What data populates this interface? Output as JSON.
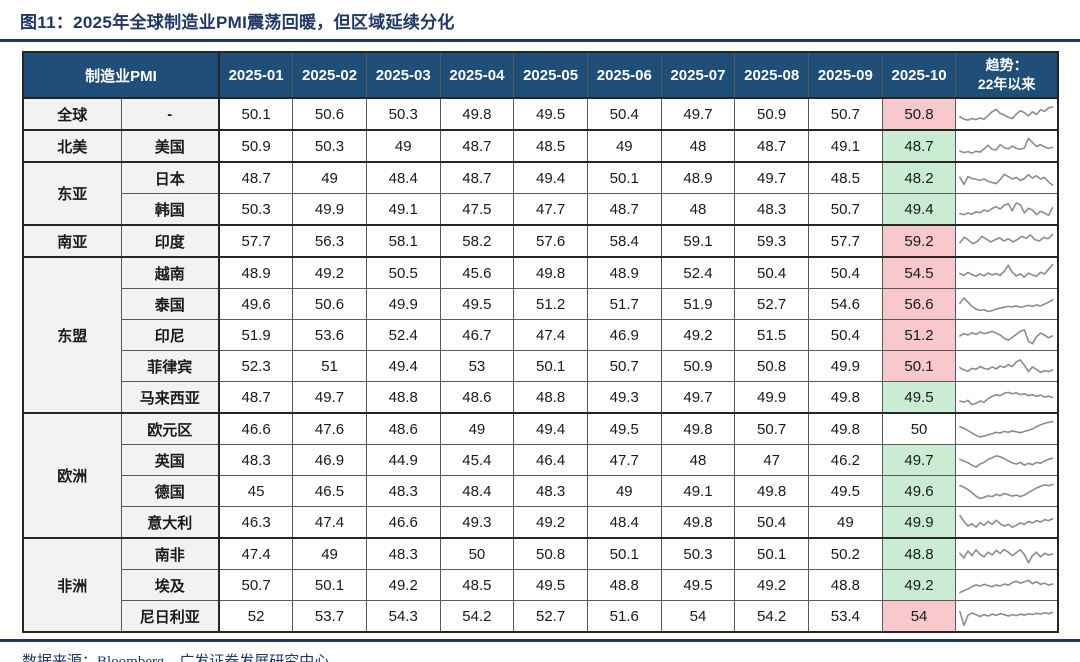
{
  "title": "图11：2025年全球制造业PMI震荡回暖，但区域延续分化",
  "source_note": "数据来源：Bloomberg，广发证券发展研究中心",
  "colors": {
    "header_bg": "#1F4E79",
    "title_navy": "#1F3864",
    "up_bg": "#F8C8CC",
    "up_text": "#C00000",
    "down_bg": "#C9ECD2",
    "down_text": "#1E7E34",
    "label_bg": "#F2F2F2",
    "sparkline": "#8C8C8C"
  },
  "chart_data": {
    "type": "table",
    "corner_label": "制造业PMI",
    "trend_header_line1": "趋势：",
    "trend_header_line2": "22年以来",
    "months": [
      "2025-01",
      "2025-02",
      "2025-03",
      "2025-04",
      "2025-05",
      "2025-06",
      "2025-07",
      "2025-08",
      "2025-09",
      "2025-10"
    ],
    "latest_style_legend": {
      "up": "red highlight",
      "down": "green highlight",
      "neutral": "no highlight"
    },
    "rows": [
      {
        "region": "全球",
        "region_span": 1,
        "group_start": true,
        "country": "-",
        "values": [
          50.1,
          50.6,
          50.3,
          49.8,
          49.5,
          50.4,
          49.7,
          50.9,
          50.7,
          50.8
        ],
        "latest_style": "up",
        "sparkline": [
          0.4,
          0.3,
          0.26,
          0.33,
          0.28,
          0.35,
          0.3,
          0.45,
          0.62,
          0.72,
          0.55,
          0.48,
          0.38,
          0.33,
          0.52,
          0.66,
          0.58,
          0.44,
          0.62,
          0.5,
          0.7,
          0.64,
          0.78,
          0.82
        ]
      },
      {
        "region": "北美",
        "region_span": 1,
        "group_start": true,
        "country": "美国",
        "values": [
          50.9,
          50.3,
          49,
          48.7,
          48.5,
          49,
          48,
          48.7,
          49.1,
          48.7
        ],
        "latest_style": "down",
        "sparkline": [
          0.3,
          0.24,
          0.28,
          0.22,
          0.3,
          0.26,
          0.4,
          0.55,
          0.38,
          0.35,
          0.58,
          0.45,
          0.4,
          0.52,
          0.42,
          0.38,
          0.44,
          0.85,
          0.68,
          0.5,
          0.58,
          0.48,
          0.42,
          0.46
        ]
      },
      {
        "region": "东亚",
        "region_span": 2,
        "group_start": true,
        "country": "日本",
        "values": [
          48.7,
          49,
          48.4,
          48.7,
          49.4,
          50.1,
          48.9,
          49.7,
          48.5,
          48.2
        ],
        "latest_style": "down",
        "sparkline": [
          0.55,
          0.25,
          0.58,
          0.5,
          0.46,
          0.42,
          0.48,
          0.38,
          0.33,
          0.28,
          0.45,
          0.68,
          0.58,
          0.48,
          0.55,
          0.42,
          0.5,
          0.66,
          0.52,
          0.62,
          0.48,
          0.55,
          0.35,
          0.22
        ]
      },
      {
        "country": "韩国",
        "values": [
          50.3,
          49.9,
          49.1,
          47.5,
          47.7,
          48.7,
          48,
          48.3,
          50.7,
          49.4
        ],
        "latest_style": "down",
        "sparkline": [
          0.32,
          0.28,
          0.35,
          0.3,
          0.4,
          0.36,
          0.48,
          0.42,
          0.55,
          0.62,
          0.52,
          0.68,
          0.75,
          0.45,
          0.78,
          0.7,
          0.35,
          0.55,
          0.48,
          0.28,
          0.42,
          0.35,
          0.25,
          0.58
        ]
      },
      {
        "region": "南亚",
        "region_span": 1,
        "group_start": true,
        "country": "印度",
        "values": [
          57.7,
          56.3,
          58.1,
          58.2,
          57.6,
          58.4,
          59.1,
          59.3,
          57.7,
          59.2
        ],
        "latest_style": "up",
        "sparkline": [
          0.45,
          0.68,
          0.55,
          0.4,
          0.52,
          0.72,
          0.6,
          0.48,
          0.58,
          0.66,
          0.52,
          0.62,
          0.48,
          0.58,
          0.72,
          0.64,
          0.78,
          0.58,
          0.52,
          0.68,
          0.62,
          0.8
        ]
      },
      {
        "region": "东盟",
        "region_span": 5,
        "group_start": true,
        "country": "越南",
        "values": [
          48.9,
          49.2,
          50.5,
          45.6,
          49.8,
          48.9,
          52.4,
          50.4,
          50.4,
          54.5
        ],
        "latest_style": "up",
        "sparkline": [
          0.5,
          0.42,
          0.55,
          0.45,
          0.38,
          0.48,
          0.4,
          0.52,
          0.44,
          0.5,
          0.42,
          0.6,
          0.85,
          0.55,
          0.4,
          0.48,
          0.35,
          0.52,
          0.44,
          0.38,
          0.55,
          0.48,
          0.68,
          0.88
        ]
      },
      {
        "country": "泰国",
        "values": [
          49.6,
          50.6,
          49.9,
          49.5,
          51.2,
          51.7,
          51.9,
          52.7,
          54.6,
          56.6
        ],
        "latest_style": "up",
        "sparkline": [
          0.55,
          0.78,
          0.6,
          0.42,
          0.3,
          0.25,
          0.28,
          0.2,
          0.24,
          0.3,
          0.35,
          0.38,
          0.42,
          0.4,
          0.44,
          0.38,
          0.42,
          0.46,
          0.42,
          0.48,
          0.44,
          0.52,
          0.6,
          0.7
        ]
      },
      {
        "country": "印尼",
        "values": [
          51.9,
          53.6,
          52.4,
          46.7,
          47.4,
          46.9,
          49.2,
          51.5,
          50.4,
          51.2
        ],
        "latest_style": "up",
        "sparkline": [
          0.48,
          0.58,
          0.52,
          0.62,
          0.55,
          0.65,
          0.58,
          0.62,
          0.68,
          0.6,
          0.52,
          0.38,
          0.3,
          0.42,
          0.55,
          0.68,
          0.74,
          0.25,
          0.15,
          0.45,
          0.6,
          0.52,
          0.4,
          0.48
        ]
      },
      {
        "country": "菲律宾",
        "values": [
          52.3,
          51,
          49.4,
          53,
          50.1,
          50.7,
          50.9,
          50.8,
          49.9,
          50.1
        ],
        "latest_style": "up",
        "sparkline": [
          0.45,
          0.35,
          0.3,
          0.42,
          0.38,
          0.5,
          0.42,
          0.38,
          0.48,
          0.4,
          0.52,
          0.46,
          0.58,
          0.5,
          0.7,
          0.78,
          0.55,
          0.28,
          0.48,
          0.38,
          0.25,
          0.32,
          0.28,
          0.35
        ]
      },
      {
        "country": "马来西亚",
        "values": [
          48.7,
          49.7,
          48.8,
          48.6,
          48.8,
          49.3,
          49.7,
          49.9,
          49.8,
          49.5
        ],
        "latest_style": "down",
        "sparkline": [
          0.35,
          0.3,
          0.38,
          0.2,
          0.25,
          0.35,
          0.3,
          0.45,
          0.55,
          0.62,
          0.58,
          0.68,
          0.72,
          0.66,
          0.7,
          0.62,
          0.66,
          0.58,
          0.62,
          0.55,
          0.6,
          0.52,
          0.56,
          0.5
        ]
      },
      {
        "region": "欧洲",
        "region_span": 4,
        "group_start": true,
        "country": "欧元区",
        "values": [
          46.6,
          47.6,
          48.6,
          49,
          49.4,
          49.5,
          49.8,
          50.7,
          49.8,
          50
        ],
        "latest_style": "neutral",
        "sparkline": [
          0.62,
          0.55,
          0.45,
          0.35,
          0.25,
          0.18,
          0.22,
          0.28,
          0.32,
          0.38,
          0.35,
          0.42,
          0.38,
          0.44,
          0.4,
          0.36,
          0.42,
          0.46,
          0.52,
          0.62,
          0.7,
          0.76,
          0.8,
          0.84
        ]
      },
      {
        "country": "英国",
        "values": [
          48.3,
          46.9,
          44.9,
          45.4,
          46.4,
          47.7,
          48,
          47,
          46.2,
          49.7
        ],
        "latest_style": "down",
        "sparkline": [
          0.55,
          0.48,
          0.4,
          0.3,
          0.22,
          0.35,
          0.42,
          0.55,
          0.62,
          0.7,
          0.66,
          0.58,
          0.48,
          0.4,
          0.35,
          0.42,
          0.3,
          0.38,
          0.32,
          0.42,
          0.38,
          0.48,
          0.55,
          0.6
        ]
      },
      {
        "country": "德国",
        "values": [
          45,
          46.5,
          48.3,
          48.4,
          48.3,
          49,
          49.1,
          49.8,
          49.5,
          49.6
        ],
        "latest_style": "down",
        "sparkline": [
          0.75,
          0.68,
          0.58,
          0.45,
          0.3,
          0.2,
          0.25,
          0.32,
          0.28,
          0.38,
          0.32,
          0.42,
          0.36,
          0.3,
          0.35,
          0.28,
          0.35,
          0.45,
          0.55,
          0.65,
          0.72,
          0.78,
          0.75,
          0.8
        ]
      },
      {
        "country": "意大利",
        "values": [
          46.3,
          47.4,
          46.6,
          49.3,
          49.2,
          48.4,
          49.8,
          50.4,
          49,
          49.9
        ],
        "latest_style": "down",
        "sparkline": [
          0.8,
          0.55,
          0.35,
          0.45,
          0.3,
          0.5,
          0.38,
          0.55,
          0.42,
          0.6,
          0.45,
          0.35,
          0.42,
          0.3,
          0.38,
          0.48,
          0.42,
          0.55,
          0.48,
          0.58,
          0.52,
          0.62,
          0.58,
          0.66
        ]
      },
      {
        "region": "非洲",
        "region_span": 3,
        "group_start": true,
        "country": "南非",
        "values": [
          47.4,
          49,
          48.3,
          50,
          50.8,
          50.1,
          50.3,
          50.1,
          50.2,
          48.8
        ],
        "latest_style": "down",
        "sparkline": [
          0.55,
          0.35,
          0.65,
          0.45,
          0.7,
          0.5,
          0.4,
          0.6,
          0.48,
          0.68,
          0.55,
          0.72,
          0.6,
          0.45,
          0.58,
          0.7,
          0.5,
          0.15,
          0.45,
          0.6,
          0.4,
          0.55,
          0.48,
          0.52
        ]
      },
      {
        "country": "埃及",
        "values": [
          50.7,
          50.1,
          49.2,
          48.5,
          49.5,
          48.8,
          49.5,
          49.2,
          48.8,
          49.2
        ],
        "latest_style": "down",
        "sparkline": [
          0.2,
          0.28,
          0.35,
          0.45,
          0.52,
          0.48,
          0.55,
          0.5,
          0.45,
          0.52,
          0.48,
          0.56,
          0.52,
          0.62,
          0.68,
          0.6,
          0.66,
          0.72,
          0.58,
          0.66,
          0.55,
          0.6,
          0.52,
          0.56
        ]
      },
      {
        "country": "尼日利亚",
        "values": [
          52,
          53.7,
          54.3,
          54.2,
          52.7,
          51.6,
          54,
          54.2,
          53.4,
          54
        ],
        "latest_style": "up",
        "sparkline": [
          0.7,
          0.12,
          0.55,
          0.65,
          0.58,
          0.5,
          0.58,
          0.52,
          0.6,
          0.55,
          0.62,
          0.58,
          0.52,
          0.58,
          0.54,
          0.6,
          0.56,
          0.62,
          0.58,
          0.64,
          0.6,
          0.66,
          0.62,
          0.68
        ]
      }
    ]
  }
}
